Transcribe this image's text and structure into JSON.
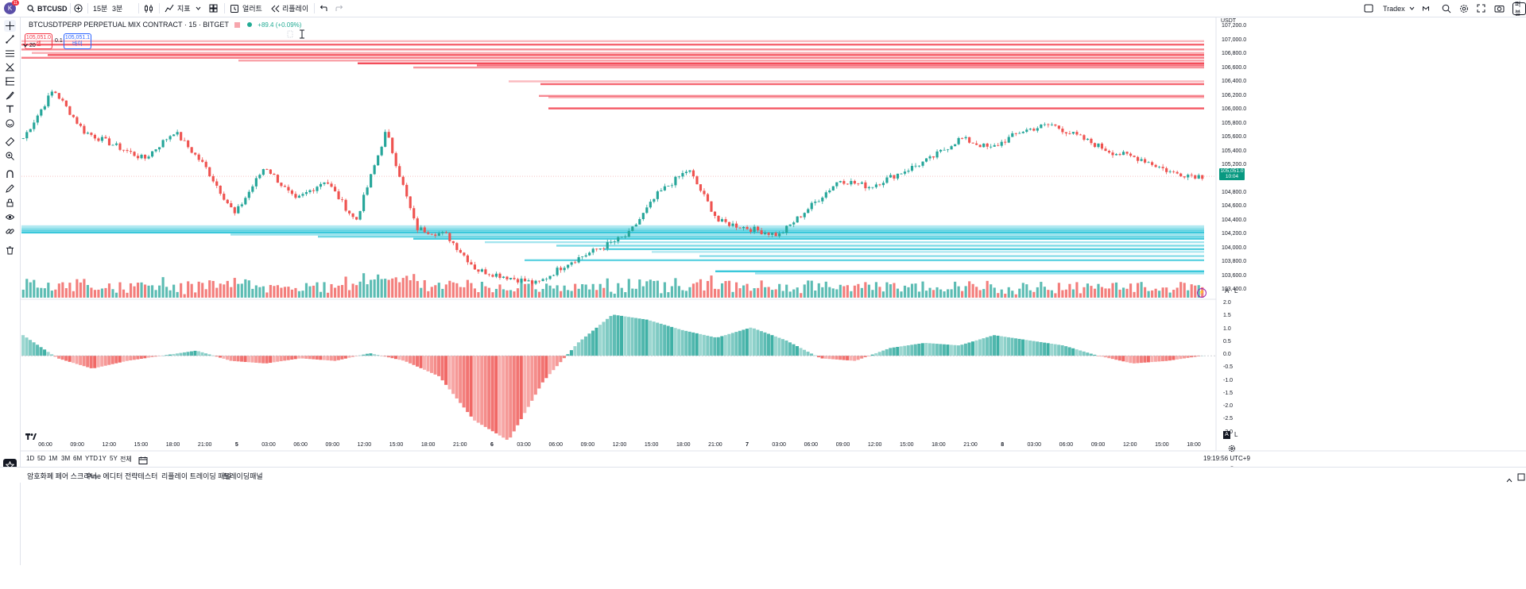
{
  "topbar": {
    "avatar_letter": "K",
    "avatar_badge": "11",
    "symbol": "BTCUSD",
    "interval_1": "15분",
    "interval_2": "3분",
    "indicators_label": "지표",
    "alert_label": "얼러트",
    "replay_label": "리플레이",
    "layout_name": "Tradex",
    "right_cut_label": "퍼블"
  },
  "legend": {
    "title": "BTCUSDTPERP PERPETUAL MIX CONTRACT · 15 · BITGET",
    "change": "+89.4 (+0.09%)",
    "sell_price": "105,051.0",
    "sell_label": "셀",
    "spread": "0.1",
    "buy_price": "105,051.1",
    "buy_label": "바이",
    "depth_label": "20"
  },
  "axis": {
    "currency": "USDT",
    "price_labels": [
      "107,200.0",
      "107,000.0",
      "106,800.0",
      "106,600.0",
      "106,400.0",
      "106,200.0",
      "106,000.0",
      "105,800.0",
      "105,600.0",
      "105,400.0",
      "105,200.0",
      "104,800.0",
      "104,600.0",
      "104,400.0",
      "104,200.0",
      "104,000.0",
      "103,800.0",
      "103,600.0",
      "103,400.0"
    ],
    "current_price": "105,051.0",
    "countdown": "10:04",
    "osc_labels": [
      "2.0",
      "1.5",
      "1.0",
      "0.5",
      "0.0",
      "-0.5",
      "-1.0",
      "-1.5",
      "-2.0",
      "-2.5",
      "-3.0"
    ],
    "time_labels": [
      "06:00",
      "09:00",
      "12:00",
      "15:00",
      "18:00",
      "21:00",
      "5",
      "03:00",
      "06:00",
      "09:00",
      "12:00",
      "15:00",
      "18:00",
      "21:00",
      "6",
      "03:00",
      "06:00",
      "09:00",
      "12:00",
      "15:00",
      "18:00",
      "21:00",
      "7",
      "03:00",
      "06:00",
      "09:00",
      "12:00",
      "15:00",
      "18:00",
      "21:00",
      "8",
      "03:00",
      "06:00",
      "09:00",
      "12:00",
      "15:00",
      "18:00"
    ],
    "a_label": "A",
    "l_label": "L"
  },
  "ranges": [
    "1D",
    "5D",
    "1M",
    "3M",
    "6M",
    "YTD",
    "1Y",
    "5Y",
    "전체"
  ],
  "clock": "19:19:56 UTC+9",
  "bottom_tabs": [
    "암호화폐 페어 스크리너",
    "Pine 에디터",
    "전략테스터",
    "리플레이 트레이딩 패널",
    "트레이딩패널"
  ],
  "colors": {
    "up": "#26a69a",
    "down": "#ef5350",
    "ask_wall": "#f23645",
    "bid_wall": "#22c1d6",
    "ma": "#f5a623"
  },
  "chart_data": {
    "type": "candlestick",
    "symbol": "BTCUSDTPERP",
    "interval": "15",
    "ylim": [
      103300,
      107250
    ],
    "last_price": 105051.0,
    "anchor_closes": [
      105600,
      106300,
      105700,
      105500,
      105300,
      105700,
      105200,
      104500,
      105200,
      104700,
      105000,
      104400,
      105700,
      104300,
      104200,
      103700,
      103600,
      103500,
      103800,
      104000,
      104200,
      104800,
      105150,
      104400,
      104300,
      104200,
      104600,
      105000,
      104900,
      105100,
      105300,
      105600,
      105450,
      105700,
      105800,
      105600,
      105400,
      105300,
      105100,
      105051
    ],
    "ask_walls": [
      107000,
      106950,
      106880,
      106830,
      106800,
      106760,
      106720,
      106680,
      106650,
      106620,
      106420,
      106380,
      106210,
      106190,
      106030
    ],
    "bid_walls": [
      104330,
      104300,
      104270,
      104240,
      104210,
      104180,
      104150,
      104100,
      104050,
      104000,
      103960,
      103900,
      103840,
      103680,
      103650
    ],
    "oscillator": {
      "ylim": [
        -3.2,
        2.1
      ],
      "anchor_values": [
        0.8,
        -0.1,
        -0.5,
        -0.2,
        0.0,
        0.2,
        -0.2,
        -0.3,
        -0.1,
        -0.2,
        0.1,
        -0.2,
        -0.8,
        -2.5,
        -3.3,
        -1.0,
        0.5,
        1.6,
        1.4,
        1.0,
        0.7,
        1.1,
        0.6,
        -0.1,
        -0.2,
        0.3,
        0.5,
        0.4,
        0.8,
        0.6,
        0.4,
        0.0,
        -0.3,
        -0.2,
        0.0
      ]
    }
  }
}
